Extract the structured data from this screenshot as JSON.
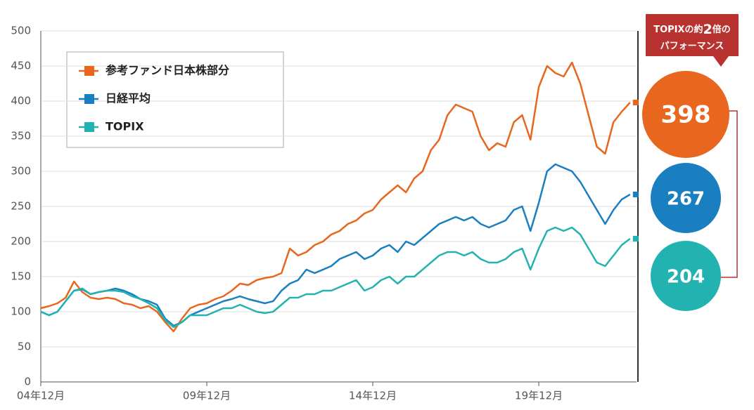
{
  "chart_data": {
    "type": "line",
    "categories": [
      "04年12月",
      null,
      null,
      null,
      null,
      null,
      null,
      null,
      null,
      null,
      null,
      null,
      null,
      null,
      null,
      null,
      null,
      null,
      null,
      null,
      "09年12月",
      null,
      null,
      null,
      null,
      null,
      null,
      null,
      null,
      null,
      null,
      null,
      null,
      null,
      null,
      null,
      null,
      null,
      null,
      null,
      "14年12月",
      null,
      null,
      null,
      null,
      null,
      null,
      null,
      null,
      null,
      null,
      null,
      null,
      null,
      null,
      null,
      null,
      null,
      null,
      null,
      "19年12月",
      null,
      null,
      null,
      null,
      null,
      null,
      null,
      null,
      null,
      null,
      null
    ],
    "series": [
      {
        "name": "参考ファンド日本株部分",
        "color": "#e8661e",
        "values": [
          105,
          108,
          112,
          120,
          143,
          128,
          120,
          118,
          120,
          118,
          112,
          110,
          105,
          108,
          100,
          85,
          72,
          90,
          105,
          110,
          112,
          118,
          122,
          130,
          140,
          138,
          145,
          148,
          150,
          155,
          190,
          180,
          185,
          195,
          200,
          210,
          215,
          225,
          230,
          240,
          245,
          260,
          270,
          280,
          270,
          290,
          300,
          330,
          345,
          380,
          395,
          390,
          385,
          350,
          330,
          340,
          335,
          370,
          380,
          345,
          420,
          450,
          440,
          435,
          455,
          425,
          380,
          335,
          325,
          370,
          385,
          398
        ]
      },
      {
        "name": "日経平均",
        "color": "#1a7fc1",
        "values": [
          100,
          95,
          100,
          115,
          130,
          132,
          125,
          128,
          130,
          133,
          130,
          125,
          118,
          115,
          110,
          90,
          80,
          85,
          95,
          100,
          105,
          110,
          115,
          118,
          122,
          118,
          115,
          112,
          115,
          130,
          140,
          145,
          160,
          155,
          160,
          165,
          175,
          180,
          185,
          175,
          180,
          190,
          195,
          185,
          200,
          195,
          205,
          215,
          225,
          230,
          235,
          230,
          235,
          225,
          220,
          225,
          230,
          245,
          250,
          215,
          255,
          300,
          310,
          305,
          300,
          285,
          265,
          245,
          225,
          245,
          260,
          267
        ]
      },
      {
        "name": "TOPIX",
        "color": "#22b3b0",
        "values": [
          100,
          95,
          100,
          115,
          130,
          133,
          125,
          128,
          130,
          130,
          128,
          122,
          118,
          112,
          105,
          88,
          78,
          85,
          95,
          95,
          95,
          100,
          105,
          105,
          110,
          105,
          100,
          98,
          100,
          110,
          120,
          120,
          125,
          125,
          130,
          130,
          135,
          140,
          145,
          130,
          135,
          145,
          150,
          140,
          150,
          150,
          160,
          170,
          180,
          185,
          185,
          180,
          185,
          175,
          170,
          170,
          175,
          185,
          190,
          160,
          190,
          215,
          220,
          215,
          220,
          210,
          190,
          170,
          165,
          180,
          195,
          204
        ]
      }
    ],
    "ylim": [
      0,
      500
    ],
    "yticks": [
      0,
      50,
      100,
      150,
      200,
      250,
      300,
      350,
      400,
      450,
      500
    ],
    "grid": true,
    "annotation": [
      "TOPIXの約",
      "2",
      "倍の",
      "パフォーマンス"
    ]
  }
}
